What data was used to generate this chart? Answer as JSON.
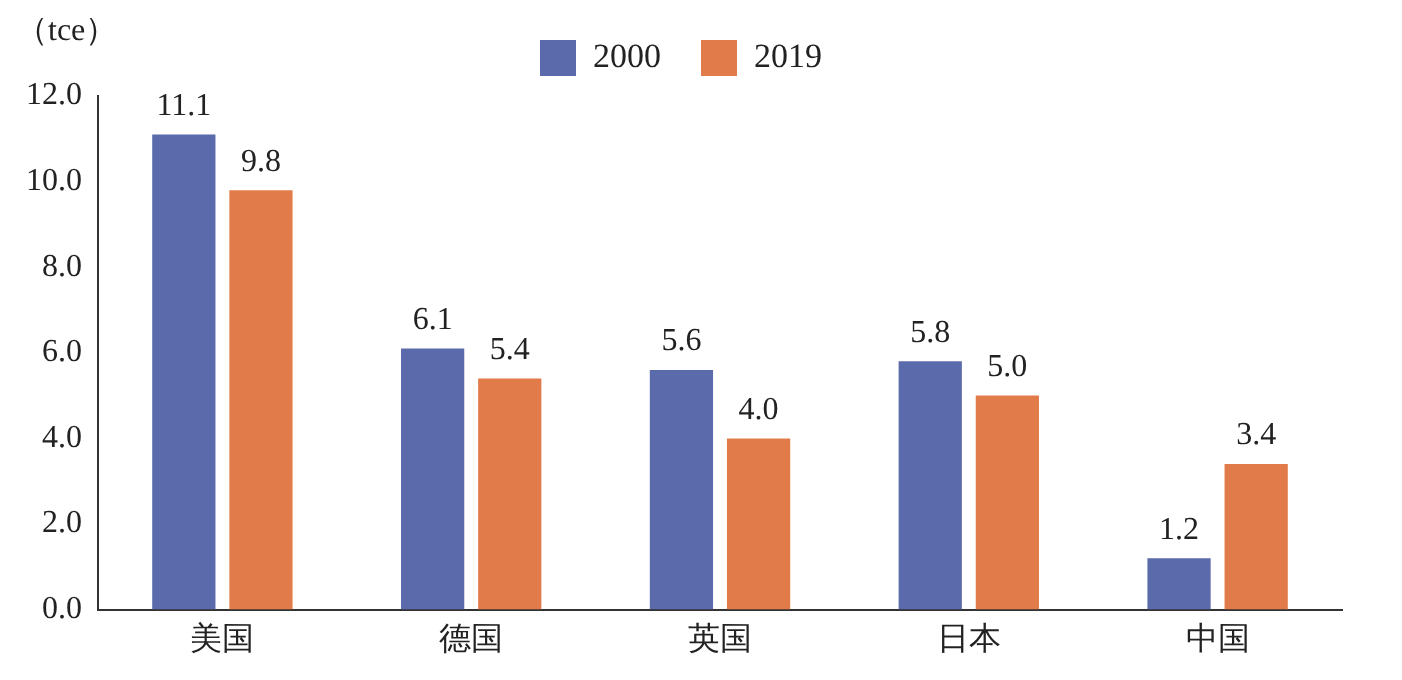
{
  "chart_data": {
    "type": "bar",
    "ylabel": "（tce）",
    "categories": [
      "美国",
      "德国",
      "英国",
      "日本",
      "中国"
    ],
    "series": [
      {
        "name": "2000",
        "color": "#5b6aaa",
        "values": [
          11.1,
          6.1,
          5.6,
          5.8,
          1.2
        ],
        "value_labels": [
          "11.1",
          "6.1",
          "5.6",
          "5.8",
          "1.2"
        ]
      },
      {
        "name": "2019",
        "color": "#e27b4a",
        "values": [
          9.8,
          5.4,
          4.0,
          5.0,
          3.4
        ],
        "value_labels": [
          "9.8",
          "5.4",
          "4.0",
          "5.0",
          "3.4"
        ]
      }
    ],
    "ylim": [
      0,
      12
    ],
    "yticks": [
      {
        "value": 0,
        "label": "0.0"
      },
      {
        "value": 2,
        "label": "2.0"
      },
      {
        "value": 4,
        "label": "4.0"
      },
      {
        "value": 6,
        "label": "6.0"
      },
      {
        "value": 8,
        "label": "8.0"
      },
      {
        "value": 10,
        "label": "10.0"
      },
      {
        "value": 12,
        "label": "12.0"
      }
    ],
    "grid": false,
    "legend": "top"
  }
}
